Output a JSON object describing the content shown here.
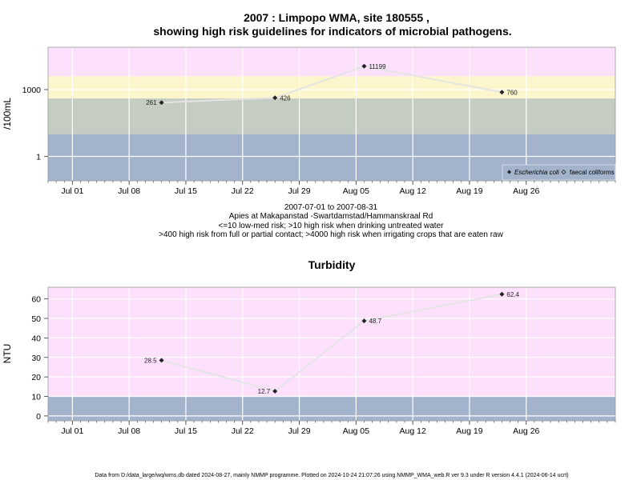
{
  "chart_data": [
    {
      "type": "line",
      "title_line1": "2007 : Limpopo WMA, site 180555 ,",
      "title_line2": "showing high risk guidelines for indicators of microbial pathogens.",
      "ylabel": "/100mL",
      "y_scale": "log",
      "ylim": [
        0.08,
        80000
      ],
      "yticks": [
        1,
        1000
      ],
      "ytick_labels": [
        "1",
        "1000"
      ],
      "xlim": [
        "2007-06-28",
        "2007-09-06"
      ],
      "xticks": [
        "2007-07-01",
        "2007-07-08",
        "2007-07-15",
        "2007-07-22",
        "2007-07-29",
        "2007-08-05",
        "2007-08-12",
        "2007-08-19",
        "2007-08-26"
      ],
      "xtick_labels": [
        "Jul 01",
        "Jul 08",
        "Jul 15",
        "Jul 22",
        "Jul 29",
        "Aug 05",
        "Aug 12",
        "Aug 19",
        "Aug 26"
      ],
      "bands": [
        {
          "from": 0.08,
          "to": 10,
          "color": "#a2b3cb"
        },
        {
          "from": 10,
          "to": 400,
          "color": "#c5cdc3"
        },
        {
          "from": 400,
          "to": 4000,
          "color": "#fdf6cc"
        },
        {
          "from": 4000,
          "to": 80000,
          "color": "#fce0fc"
        }
      ],
      "grid": true,
      "legend_position": "bottom-right",
      "legend": [
        "Escherichia coli",
        "faecal coliforms"
      ],
      "series": [
        {
          "name": "Escherichia coli",
          "x": [
            "2007-07-12",
            "2007-07-26",
            "2007-08-06",
            "2007-08-23"
          ],
          "values": [
            261,
            426,
            11199,
            760
          ],
          "labels": [
            "261",
            "426",
            "11199",
            "760"
          ],
          "label_side": [
            "left",
            "right",
            "right",
            "right"
          ]
        }
      ],
      "caption_lines": [
        "2007-07-01 to 2007-08-31",
        "Apies at Makapanstad -Swartdamstad/Hammanskraal Rd",
        "<=10 low-med risk; >10 high risk when drinking untreated water",
        ">400 high risk from full or partial contact; >4000 high risk when irrigating crops that are eaten raw"
      ]
    },
    {
      "type": "line",
      "title": "Turbidity",
      "ylabel": "NTU",
      "ylim": [
        -2.5,
        66
      ],
      "yticks": [
        0,
        10,
        20,
        30,
        40,
        50,
        60
      ],
      "ytick_labels": [
        "0",
        "10",
        "20",
        "30",
        "40",
        "50",
        "60"
      ],
      "xlim": [
        "2007-06-28",
        "2007-09-06"
      ],
      "xticks": [
        "2007-07-01",
        "2007-07-08",
        "2007-07-15",
        "2007-07-22",
        "2007-07-29",
        "2007-08-05",
        "2007-08-12",
        "2007-08-19",
        "2007-08-26"
      ],
      "xtick_labels": [
        "Jul 01",
        "Jul 08",
        "Jul 15",
        "Jul 22",
        "Jul 29",
        "Aug 05",
        "Aug 12",
        "Aug 19",
        "Aug 26"
      ],
      "bands": [
        {
          "from": -2.5,
          "to": 10,
          "color": "#a2b3cb"
        },
        {
          "from": 10,
          "to": 66,
          "color": "#fce0fc"
        }
      ],
      "grid": true,
      "series": [
        {
          "x": [
            "2007-07-12",
            "2007-07-26",
            "2007-08-06",
            "2007-08-23"
          ],
          "values": [
            28.5,
            12.7,
            48.7,
            62.4
          ],
          "labels": [
            "28.5",
            "12.7",
            "48.7",
            "62.4"
          ],
          "label_side": [
            "left",
            "left",
            "right",
            "right"
          ]
        }
      ]
    }
  ],
  "footer": "Data from D:/data_large/wq/wms.db dated 2024-08-27, mainly NMMP programme. Plotted on 2024-10-24 21:07:26 using NMMP_WMA_web.R ver 9.3 under R version 4.4.1 (2024-06-14 ucrt)",
  "colors": {
    "line": "#e4e4e4",
    "marker": "#222222",
    "grid": "#ffffff",
    "frame": "#999999"
  }
}
